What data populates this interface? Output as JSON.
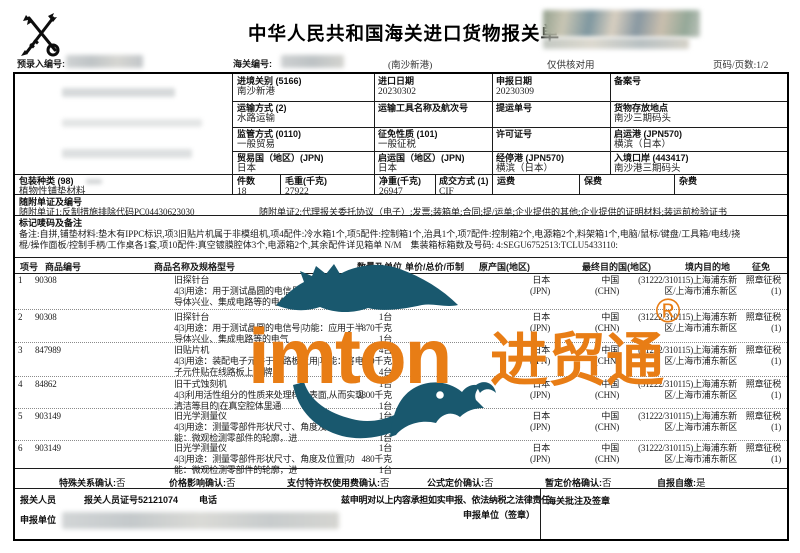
{
  "header": {
    "title": "中华人民共和国海关进口货物报关单",
    "pre_entry_label": "预录入编号:",
    "customs_no_label": "海关编号:",
    "port_note": "(南沙新港)",
    "check_note": "仅供核对用",
    "page_info": "页码/页数:1/2"
  },
  "form": {
    "entry_customs": {
      "label": "进境关别 (5166)",
      "value": "南沙新港"
    },
    "import_date": {
      "label": "进口日期",
      "value": "20230302"
    },
    "declare_date": {
      "label": "申报日期",
      "value": "20230309"
    },
    "record_no": {
      "label": "备案号",
      "value": ""
    },
    "transport_mode": {
      "label": "运输方式 (2)",
      "value": "水路运输"
    },
    "transport_name": {
      "label": "运输工具名称及航次号",
      "value": ""
    },
    "bill_no": {
      "label": "提运单号",
      "value": ""
    },
    "storage_place": {
      "label": "货物存放地点",
      "value": "南沙三期码头"
    },
    "supervision_mode": {
      "label": "监管方式 (0110)",
      "value": "一般贸易"
    },
    "levy_nature": {
      "label": "征免性质 (101)",
      "value": "一般征税"
    },
    "license_no": {
      "label": "许可证号",
      "value": ""
    },
    "departure_port": {
      "label": "启运港 (JPN570)",
      "value": "横滨（日本）"
    },
    "trade_country": {
      "label": "贸易国（地区）(JPN)",
      "value": "日本"
    },
    "departure_country": {
      "label": "启运国（地区）(JPN)",
      "value": "日本"
    },
    "transit_port": {
      "label": "经停港 (JPN570)",
      "value": "横滨（日本）"
    },
    "entry_port": {
      "label": "入境口岸 (443417)",
      "value": "南沙港三期码头"
    },
    "packing_type": {
      "label": "包装种类 (98)",
      "value": "植物性铺垫材料"
    },
    "pieces": {
      "label": "件数",
      "value": "18"
    },
    "gross_weight": {
      "label": "毛重(千克)",
      "value": "27922"
    },
    "net_weight": {
      "label": "净重(千克)",
      "value": "26947"
    },
    "transaction_mode": {
      "label": "成交方式 (1)",
      "value": "CIF"
    },
    "freight": {
      "label": "运费",
      "value": ""
    },
    "insurance": {
      "label": "保费",
      "value": ""
    },
    "misc_fees": {
      "label": "杂费",
      "value": ""
    }
  },
  "documents": {
    "section_label": "随附单证及编号",
    "doc1": "随附单证1:反制措施排除代码PC04430623030",
    "doc2": "随附单证2:代理报关委托协议（电子）;发票;装箱单;合同;提/运单;企业提供的其他;企业提供的证明材料;装运前检验证书"
  },
  "marks": {
    "section_label": "标记唛码及备注",
    "line1": "备注:自拼,铺垫材料:垫木有IPPC标识,项3旧贴片机属于非模组机,项4配件:冷水箱1个,项5配件:控制箱1个,治具1个,项7配件:控制箱2个,电源箱2个,料架箱1个,电脑/鼠标/键盘/工具箱/电线/挠",
    "line2": "棍/操作面板/控制手柄/工作桌各1套,项10配件:真空镀膜腔体3个,电源箱2个,其余配件详见箱单 N/M　集装箱标箱数及号码: 4:SEGU6752513:TCLU5433110:"
  },
  "items_table": {
    "headers": [
      "项号",
      "商品编号",
      "商品名称及规格型号",
      "数量及单位",
      "单价/总价/币制",
      "原产国(地区)",
      "最终目的国(地区)",
      "境内目的地",
      "征免"
    ]
  },
  "items": [
    {
      "no": "1",
      "code": "90308",
      "name1": "旧探针台",
      "name2": "4|3|用途：用于测试晶圆的电信号|功能：应用于半",
      "name3": "导体兴业、集成电路等的电气",
      "qty1": "1台",
      "qty2": "800千克",
      "qty3": "1台",
      "origin1": "日本",
      "origin2": "(JPN)",
      "dest1": "中国",
      "dest2": "(CHN)",
      "dom1": "(31222/310115)上海浦东新",
      "dom2": "区/上海市浦东新区",
      "levy1": "照章征税",
      "levy2": "(1)"
    },
    {
      "no": "2",
      "code": "90308",
      "name1": "旧探针台",
      "name2": "4|3|用途：用于测试晶圆的电信号|功能：应用于半",
      "name3": "导体兴业、集成电路等的电气",
      "qty1": "1台",
      "qty2": "870千克",
      "qty3": "1台",
      "origin1": "日本",
      "origin2": "(JPN)",
      "dest1": "中国",
      "dest2": "(CHN)",
      "dom1": "(31222/310115)上海浦东新",
      "dom2": "区/上海市浦东新区",
      "levy1": "照章征税",
      "levy2": "(1)"
    },
    {
      "no": "3",
      "code": "847989",
      "name1": "旧贴片机",
      "name2": "4|3|用途：装配电子元件于线路板上用|功能：将电",
      "name3": "子元件贴在线路板上|品牌：",
      "qty1": "4台",
      "qty2": "650千克",
      "qty3": "4台",
      "origin1": "日本",
      "origin2": "(JPN)",
      "dest1": "中国",
      "dest2": "(CHN)",
      "dom1": "(31222/310115)上海浦东新",
      "dom2": "区/上海市浦东新区",
      "levy1": "照章征税",
      "levy2": "(1)"
    },
    {
      "no": "4",
      "code": "84862",
      "name1": "旧干式蚀刻机",
      "name2": "4|3|利用活性组分的性质来处理样品表面,从而实现",
      "name3": "清洁等目的|在真空腔体里通",
      "qty1": "1台",
      "qty2": "2800千克",
      "qty3": "1台",
      "origin1": "日本",
      "origin2": "(JPN)",
      "dest1": "中国",
      "dest2": "(CHN)",
      "dom1": "(31222/310115)上海浦东新",
      "dom2": "区/上海市浦东新区",
      "levy1": "照章征税",
      "levy2": "(1)"
    },
    {
      "no": "5",
      "code": "903149",
      "name1": "旧光学测量仪",
      "name2": "4|3|用途：测量零部件形状尺寸、角度及位置|功",
      "name3": "能：微观检测零部件的轮廓，进",
      "qty1": "1台",
      "qty2": "1130千克",
      "qty3": "1台",
      "origin1": "日本",
      "origin2": "(JPN)",
      "dest1": "中国",
      "dest2": "(CHN)",
      "dom1": "(31222/310115)上海浦东新",
      "dom2": "区/上海市浦东新区",
      "levy1": "照章征税",
      "levy2": "(1)"
    },
    {
      "no": "6",
      "code": "903149",
      "name1": "旧光学测量仪",
      "name2": "4|3|用途：测量零部件形状尺寸、角度及位置|功",
      "name3": "能：微观检测零部件的轮廓，进",
      "qty1": "1台",
      "qty2": "480千克",
      "qty3": "1台",
      "origin1": "日本",
      "origin2": "(JPN)",
      "dest1": "中国",
      "dest2": "(CHN)",
      "dom1": "(31222/310115)上海浦东新",
      "dom2": "区/上海市浦东新区",
      "levy1": "照章征税",
      "levy2": "(1)"
    }
  ],
  "confirmations": [
    {
      "label": "特殊关系确认:",
      "value": "否"
    },
    {
      "label": "价格影响确认:",
      "value": "否"
    },
    {
      "label": "支付特许权使用费确认:",
      "value": "否"
    },
    {
      "label": "公式定价确认:",
      "value": "否"
    },
    {
      "label": "暂定价格确认:",
      "value": "否"
    },
    {
      "label": "自报自缴:",
      "value": "是"
    }
  ],
  "footer": {
    "declarant_label": "报关人员",
    "declarant_cert": "报关人员证号52121074",
    "phone_label": "电话",
    "statement": "兹申明对以上内容承担如实申报、依法纳税之法律责任",
    "sign_label": "申报单位（签章）",
    "declare_unit_label": "申报单位",
    "customs_note_label": "海关批注及签章"
  },
  "watermark": {
    "brand_latin": "imton",
    "brand_cn": "进贸通",
    "registered": "®",
    "orange": "#e87d15",
    "teal": "#19586e"
  }
}
